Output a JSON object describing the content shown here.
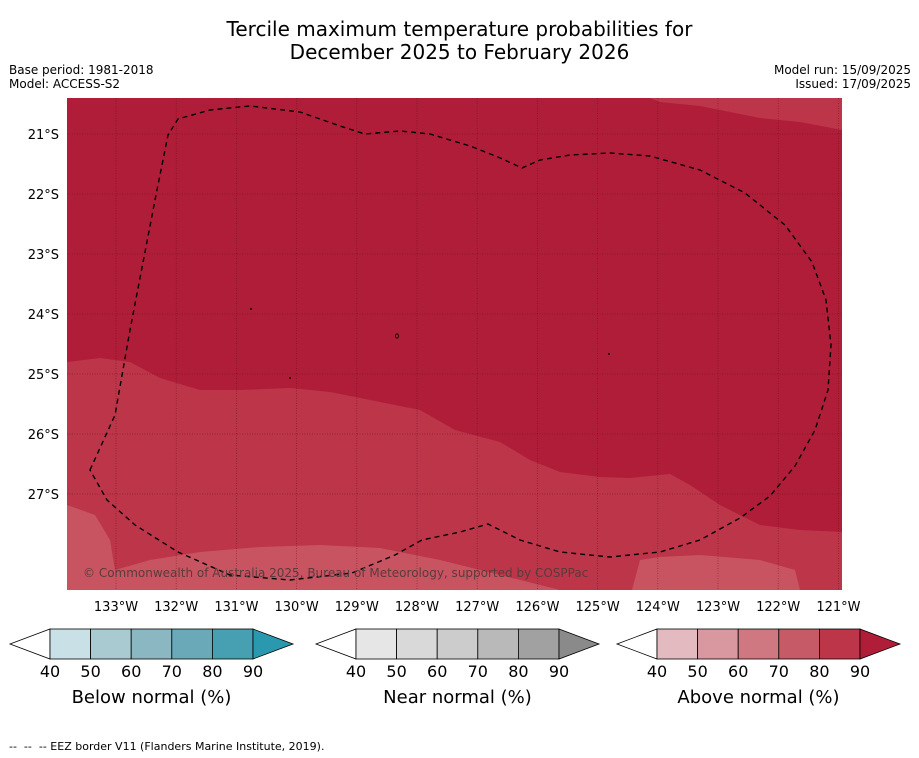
{
  "title_line1": "Tercile maximum temperature probabilities for",
  "title_line2": "December 2025 to February 2026",
  "base_period": "Base period: 1981-2018",
  "model": "Model: ACCESS-S2",
  "model_run": "Model run: 15/09/2025",
  "issued": "Issued: 17/09/2025",
  "map": {
    "lat_labels": [
      "21°S",
      "22°S",
      "23°S",
      "24°S",
      "25°S",
      "26°S",
      "27°S"
    ],
    "lon_labels": [
      "133°W",
      "132°W",
      "131°W",
      "130°W",
      "129°W",
      "128°W",
      "127°W",
      "126°W",
      "125°W",
      "124°W",
      "123°W",
      "122°W",
      "121°W"
    ],
    "copyright": "© Commonwealth of Australia 2025, Bureau of Meteorology, supported by COSPPac",
    "dominant_category": "Above normal",
    "colors": {
      "above_80_90": "#b01d38",
      "above_70_80": "#bd3549",
      "above_60_70": "#c95461"
    }
  },
  "colorbars": [
    {
      "title": "Below normal (%)",
      "ticks": [
        "40",
        "50",
        "60",
        "70",
        "80",
        "90"
      ],
      "colors": [
        "#c9e1e6",
        "#a9cad1",
        "#8ab7c2",
        "#6aa9b8",
        "#46a0b2",
        "#2a98ae"
      ]
    },
    {
      "title": "Near normal (%)",
      "ticks": [
        "40",
        "50",
        "60",
        "70",
        "80",
        "90"
      ],
      "colors": [
        "#e6e6e6",
        "#d9d9d9",
        "#cccccc",
        "#b9b9b9",
        "#a1a1a1",
        "#8a8a8a"
      ]
    },
    {
      "title": "Above normal (%)",
      "ticks": [
        "40",
        "50",
        "60",
        "70",
        "80",
        "90"
      ],
      "colors": [
        "#e3bac0",
        "#d9979f",
        "#d07882",
        "#c65a66",
        "#bd3549",
        "#b01d38"
      ]
    }
  ],
  "footnote": "--  --  -- EEZ border V11 (Flanders Marine Institute, 2019)."
}
